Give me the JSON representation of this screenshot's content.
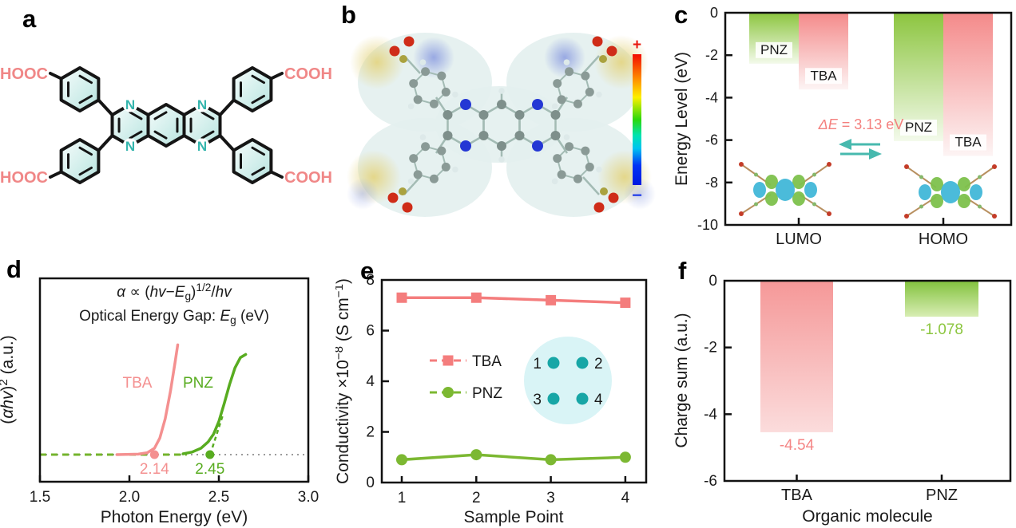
{
  "panel_letters": {
    "a": "a",
    "b": "b",
    "c": "c",
    "d": "d",
    "e": "e",
    "f": "f"
  },
  "panel_a": {
    "carboxyl_labels": {
      "top_left": "HOOC",
      "bottom_left": "HOOC",
      "top_right": "COOH",
      "bottom_right": "COOH"
    },
    "nitrogen_label": "N",
    "colors": {
      "carboxyl_text": "#f08787",
      "nitrogen": "#35b5ad",
      "bond": "#151515"
    }
  },
  "panel_b": {
    "colorbar": {
      "positive_label": "+",
      "negative_label": "−",
      "positive_color": "#e8190f",
      "negative_color": "#2b46e8"
    }
  },
  "chart_data": [
    {
      "id": "c",
      "type": "bar",
      "ylabel": "Energy Level (eV)",
      "ylim": [
        -10,
        0
      ],
      "yticks": [
        "0",
        "-2",
        "-4",
        "-6",
        "-8",
        "-10"
      ],
      "categories": [
        "LUMO",
        "HOMO"
      ],
      "series": [
        {
          "name": "PNZ",
          "color": "#8cc53f",
          "values": [
            -2.4,
            -6.05
          ]
        },
        {
          "name": "TBA",
          "color": "#f48a8a",
          "values": [
            -3.62,
            -6.75
          ]
        }
      ],
      "annotation": {
        "text_prefix": "ΔE",
        "text_rest": " = 3.13 eV",
        "color": "#f4807e"
      },
      "grid": false,
      "legend_position": "labels-inside-bars"
    },
    {
      "id": "d",
      "type": "line",
      "xlabel": "Photon Energy (eV)",
      "xlim": [
        1.5,
        3.0
      ],
      "xticks": [
        "1.5",
        "2.0",
        "2.5",
        "3.0"
      ],
      "ylabel_segments": [
        {
          "t": "("
        },
        {
          "t": "αhv",
          "i": 1
        },
        {
          "t": ")"
        },
        {
          "t": "2",
          "sup": 1
        },
        {
          "t": " (a.u.)"
        }
      ],
      "equation_line1": [
        {
          "t": "α ",
          "i": 1
        },
        {
          "t": "∝ ("
        },
        {
          "t": "hv",
          "i": 1
        },
        {
          "t": "−"
        },
        {
          "t": "E",
          "i": 1
        },
        {
          "t": "g",
          "sub": 1
        },
        {
          "t": ")"
        },
        {
          "t": "1/2",
          "sup": 1
        },
        {
          "t": "/"
        },
        {
          "t": "hv",
          "i": 1
        }
      ],
      "equation_line2": [
        {
          "t": "Optical Energy Gap: "
        },
        {
          "t": "E",
          "i": 1
        },
        {
          "t": "g",
          "sub": 1
        },
        {
          "t": " (eV)"
        }
      ],
      "series": [
        {
          "name": "TBA",
          "color": "#f49090",
          "band_gap": 2.14,
          "gap_label": "2.14",
          "points": [
            [
              1.93,
              0
            ],
            [
              2.05,
              0.004
            ],
            [
              2.1,
              0.015
            ],
            [
              2.14,
              0.05
            ],
            [
              2.17,
              0.13
            ],
            [
              2.2,
              0.28
            ],
            [
              2.23,
              0.5
            ],
            [
              2.255,
              0.72
            ],
            [
              2.27,
              0.86
            ]
          ]
        },
        {
          "name": "PNZ",
          "color": "#58ac20",
          "band_gap": 2.45,
          "gap_label": "2.45",
          "points": [
            [
              2.3,
              0.006
            ],
            [
              2.35,
              0.02
            ],
            [
              2.4,
              0.05
            ],
            [
              2.44,
              0.1
            ],
            [
              2.47,
              0.16
            ],
            [
              2.5,
              0.26
            ],
            [
              2.53,
              0.4
            ],
            [
              2.56,
              0.55
            ],
            [
              2.59,
              0.68
            ],
            [
              2.62,
              0.76
            ],
            [
              2.65,
              0.785
            ]
          ]
        }
      ],
      "baseline_dashed_color": "#74b42c",
      "dotted_line_color": "#9b9b9b"
    },
    {
      "id": "e",
      "type": "line",
      "xlabel": "Sample Point",
      "xticks": [
        "1",
        "2",
        "3",
        "4"
      ],
      "ylim": [
        0,
        8
      ],
      "yticks": [
        "0",
        "2",
        "4",
        "6",
        "8"
      ],
      "ylabel_segments": [
        {
          "t": "Conductivity ×10"
        },
        {
          "t": "−8",
          "sup": 1
        },
        {
          "t": " (S cm"
        },
        {
          "t": "−1",
          "sup": 1
        },
        {
          "t": ")"
        }
      ],
      "series": [
        {
          "name": "TBA",
          "color": "#f47d7d",
          "marker": "square",
          "values": [
            7.3,
            7.3,
            7.2,
            7.1
          ]
        },
        {
          "name": "PNZ",
          "color": "#7cb832",
          "marker": "circle",
          "values": [
            0.9,
            1.1,
            0.9,
            1.0
          ]
        }
      ],
      "inset": {
        "labels": [
          "1",
          "2",
          "3",
          "4"
        ],
        "dot_color": "#17a6a6",
        "bg_color": "#d9f4f6"
      }
    },
    {
      "id": "f",
      "type": "bar",
      "xlabel": "Organic molecule",
      "ylabel": "Charge sum (a.u.)",
      "ylim": [
        -6,
        0
      ],
      "yticks": [
        "0",
        "-2",
        "-4",
        "-6"
      ],
      "categories": [
        "TBA",
        "PNZ"
      ],
      "values": [
        -4.54,
        -1.078
      ],
      "value_labels": [
        "-4.54",
        "-1.078"
      ],
      "colors": [
        "#f59898",
        "#82c23d"
      ],
      "label_colors": [
        "#f48686",
        "#8cc63f"
      ]
    }
  ]
}
